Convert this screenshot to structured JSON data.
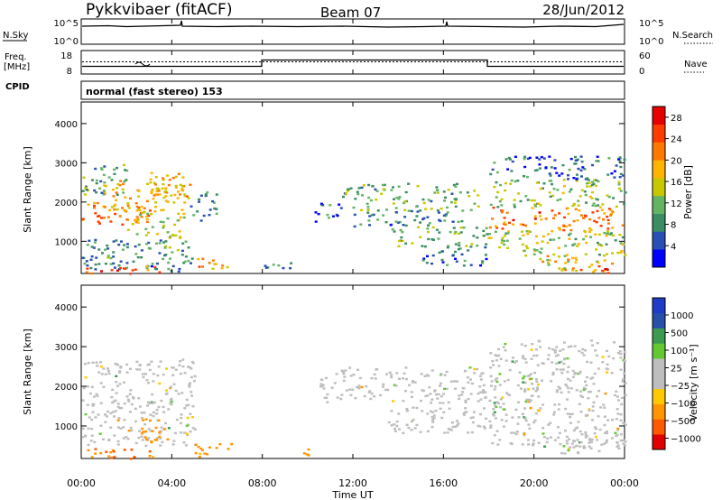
{
  "header": {
    "title": "Pykkvibaer (fitACF)",
    "beam": "Beam 07",
    "date": "28/Jun/2012"
  },
  "strips": {
    "nsky_label": "N.Sky",
    "nsky_ticks": [
      "10^5",
      "10^0"
    ],
    "nsearch_label": "N.Search",
    "nsearch_ticks": [
      "10^5",
      "10^0"
    ],
    "freq_label_top": "Freq.",
    "freq_label_bottom": "[MHz]",
    "freq_ticks": [
      "18",
      "8"
    ],
    "nave_label": "Nave",
    "nave_ticks": [
      "60",
      "0"
    ],
    "cpid_label": "CPID",
    "cpid_text": "normal (fast stereo) 153"
  },
  "colors": {
    "power_scale": [
      "#0000ff",
      "#2850b4",
      "#3c8c64",
      "#64b464",
      "#c8c800",
      "#ffb400",
      "#ff7800",
      "#ff3c00",
      "#e60000"
    ],
    "velocity_scale": [
      "#e10000",
      "#ff5a00",
      "#ff9600",
      "#ffc800",
      "#bebebe",
      "#bebebe",
      "#64c832",
      "#3c9b50",
      "#2850aa",
      "#1e3cc8"
    ],
    "ground_scatter": "#bebebe"
  },
  "chart_data": [
    {
      "type": "heatmap",
      "name": "power",
      "title": "",
      "xlabel": "",
      "ylabel": "Slant Range [km]",
      "x_range": [
        "00:00",
        "24:00"
      ],
      "ylim": [
        180,
        4550
      ],
      "x_ticks": [
        "00:00",
        "04:00",
        "08:00",
        "12:00",
        "16:00",
        "20:00",
        "00:00"
      ],
      "y_ticks": [
        "1000",
        "2000",
        "3000",
        "4000"
      ],
      "colorbar": {
        "label": "Power [dB]",
        "ticks": [
          "4",
          "8",
          "12",
          "16",
          "20",
          "24",
          "28"
        ],
        "range": [
          0,
          30
        ]
      },
      "regions": [
        {
          "t0": 0.0,
          "t1": 3.0,
          "r0": 1400,
          "r1": 2000,
          "level": 22
        },
        {
          "t0": 0.5,
          "t1": 4.5,
          "r0": 1800,
          "r1": 2600,
          "level": 18
        },
        {
          "t0": 0.0,
          "t1": 2.0,
          "r0": 2200,
          "r1": 3000,
          "level": 10
        },
        {
          "t0": 3.0,
          "t1": 4.8,
          "r0": 2000,
          "r1": 2800,
          "level": 19
        },
        {
          "t0": 2.0,
          "t1": 4.5,
          "r0": 1100,
          "r1": 1800,
          "level": 14
        },
        {
          "t0": 0.0,
          "t1": 5.0,
          "r0": 600,
          "r1": 1100,
          "level": 9
        },
        {
          "t0": 0.0,
          "t1": 5.0,
          "r0": 250,
          "r1": 600,
          "level": 8
        },
        {
          "t0": 0.0,
          "t1": 3.5,
          "r0": 200,
          "r1": 400,
          "level": 24
        },
        {
          "t0": 5.0,
          "t1": 6.5,
          "r0": 250,
          "r1": 600,
          "level": 20
        },
        {
          "t0": 4.8,
          "t1": 6.0,
          "r0": 1500,
          "r1": 2300,
          "level": 8
        },
        {
          "t0": 8.0,
          "t1": 9.5,
          "r0": 250,
          "r1": 500,
          "level": 7
        },
        {
          "t0": 10.2,
          "t1": 11.5,
          "r0": 1500,
          "r1": 2000,
          "level": 6
        },
        {
          "t0": 11.5,
          "t1": 17.5,
          "r0": 1800,
          "r1": 2500,
          "level": 11
        },
        {
          "t0": 12.0,
          "t1": 17.0,
          "r0": 1400,
          "r1": 1800,
          "level": 8
        },
        {
          "t0": 13.5,
          "t1": 18.0,
          "r0": 900,
          "r1": 1400,
          "level": 12
        },
        {
          "t0": 15.0,
          "t1": 18.0,
          "r0": 400,
          "r1": 900,
          "level": 7
        },
        {
          "t0": 18.0,
          "t1": 24.0,
          "r0": 1300,
          "r1": 1900,
          "level": 22
        },
        {
          "t0": 18.0,
          "t1": 24.0,
          "r0": 1900,
          "r1": 2600,
          "level": 12
        },
        {
          "t0": 18.0,
          "t1": 24.0,
          "r0": 600,
          "r1": 1300,
          "level": 14
        },
        {
          "t0": 18.0,
          "t1": 24.0,
          "r0": 2600,
          "r1": 3200,
          "level": 6
        },
        {
          "t0": 20.0,
          "t1": 23.5,
          "r0": 250,
          "r1": 700,
          "level": 17
        },
        {
          "t0": 22.0,
          "t1": 23.5,
          "r0": 200,
          "r1": 400,
          "level": 26
        }
      ]
    },
    {
      "type": "heatmap",
      "name": "velocity",
      "title": "",
      "xlabel": "Time UT",
      "ylabel": "Slant Range [km]",
      "x_range": [
        "00:00",
        "24:00"
      ],
      "ylim": [
        180,
        4550
      ],
      "x_ticks": [
        "00:00",
        "04:00",
        "08:00",
        "12:00",
        "16:00",
        "20:00",
        "00:00"
      ],
      "y_ticks": [
        "1000",
        "2000",
        "3000",
        "4000"
      ],
      "colorbar": {
        "label": "Velocity [m s⁻¹]",
        "ticks": [
          "1000",
          "500",
          "100",
          "25",
          "−25",
          "−100",
          "−500",
          "−1000"
        ]
      },
      "regions": [
        {
          "t0": 0.0,
          "t1": 5.0,
          "r0": 1400,
          "r1": 2700,
          "level": 0
        },
        {
          "t0": 0.0,
          "t1": 5.0,
          "r0": 500,
          "r1": 1400,
          "level": 0
        },
        {
          "t0": 0.0,
          "t1": 3.5,
          "r0": 200,
          "r1": 450,
          "level": -500
        },
        {
          "t0": 2.5,
          "t1": 3.8,
          "r0": 600,
          "r1": 1300,
          "level": -300
        },
        {
          "t0": 5.0,
          "t1": 6.8,
          "r0": 250,
          "r1": 600,
          "level": -150
        },
        {
          "t0": 9.0,
          "t1": 10.0,
          "r0": 250,
          "r1": 450,
          "level": -150
        },
        {
          "t0": 10.5,
          "t1": 18.0,
          "r0": 1600,
          "r1": 2500,
          "level": 0
        },
        {
          "t0": 13.5,
          "t1": 18.0,
          "r0": 800,
          "r1": 1500,
          "level": 0
        },
        {
          "t0": 18.0,
          "t1": 24.0,
          "r0": 500,
          "r1": 2600,
          "level": 0
        },
        {
          "t0": 18.0,
          "t1": 24.0,
          "r0": 2600,
          "r1": 3200,
          "level": 0
        },
        {
          "t0": 19.0,
          "t1": 20.0,
          "r0": 2100,
          "r1": 2300,
          "level": 80
        },
        {
          "t0": 20.5,
          "t1": 24.0,
          "r0": 300,
          "r1": 700,
          "level": 0
        }
      ]
    }
  ]
}
